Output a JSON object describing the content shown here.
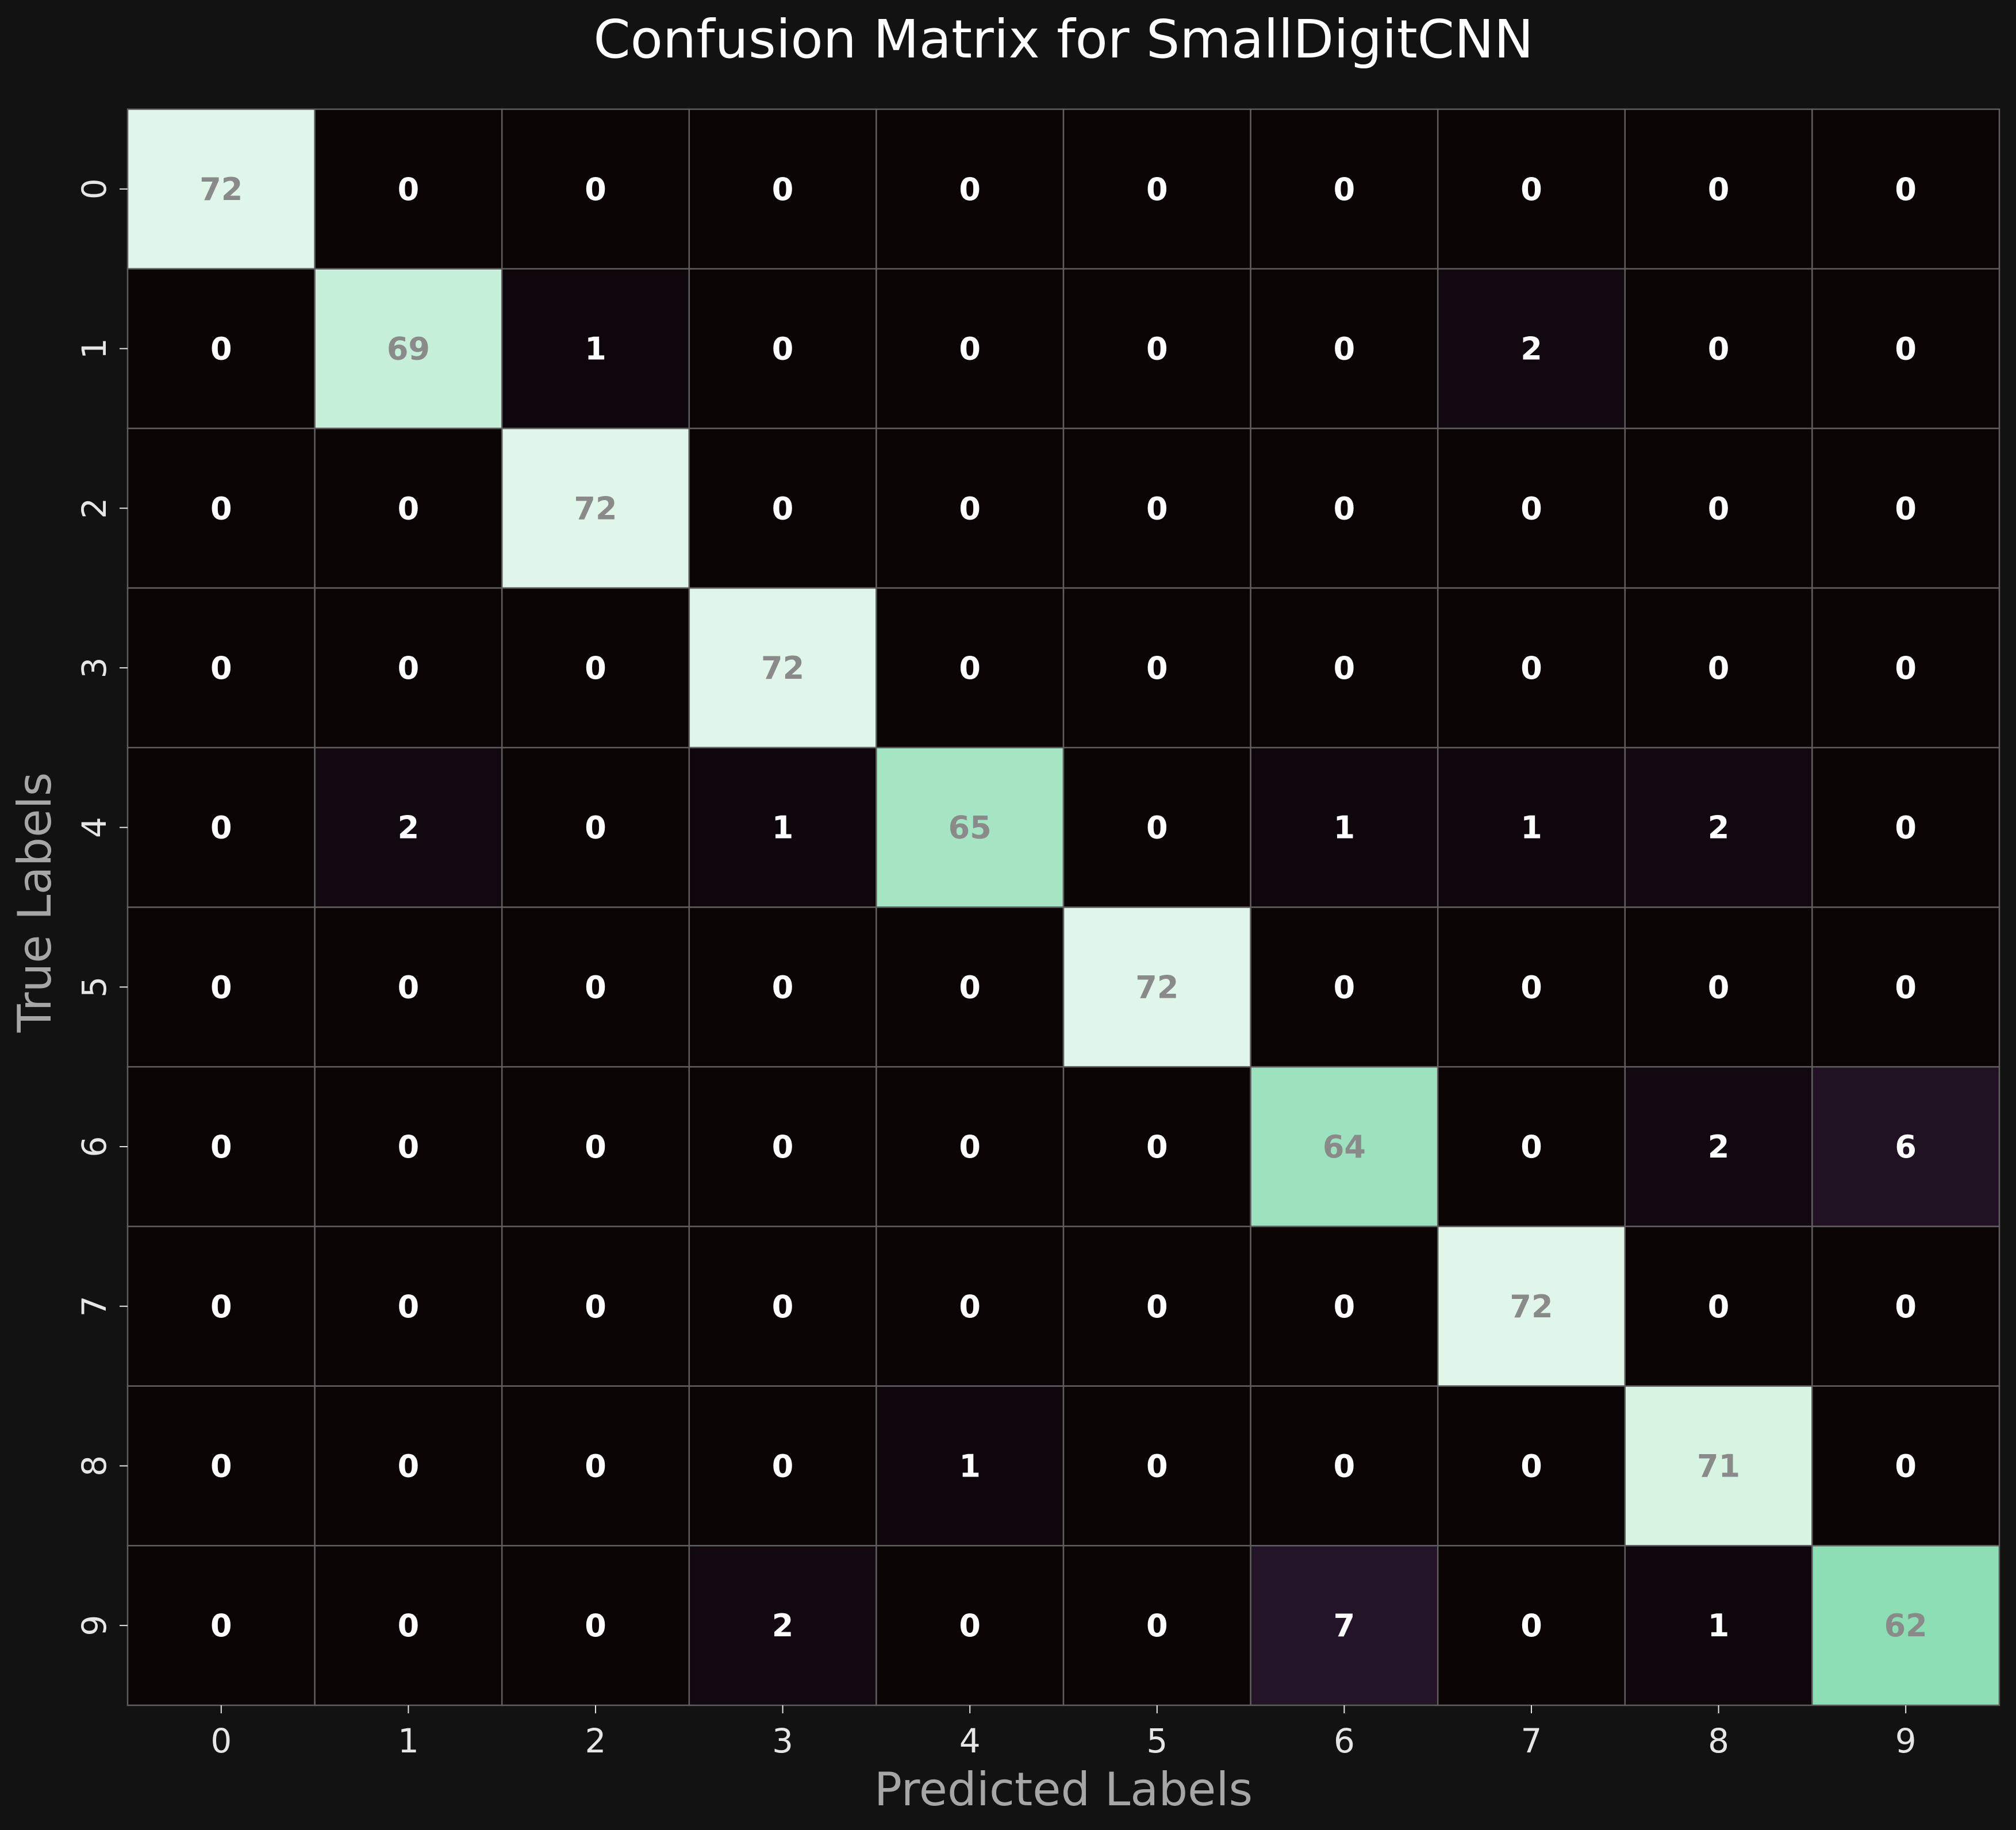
{
  "chart_data": {
    "type": "heatmap",
    "title": "Confusion Matrix for SmallDigitCNN",
    "xlabel": "Predicted Labels",
    "ylabel": "True Labels",
    "x_categories": [
      "0",
      "1",
      "2",
      "3",
      "4",
      "5",
      "6",
      "7",
      "8",
      "9"
    ],
    "y_categories": [
      "0",
      "1",
      "2",
      "3",
      "4",
      "5",
      "6",
      "7",
      "8",
      "9"
    ],
    "matrix": [
      [
        72,
        0,
        0,
        0,
        0,
        0,
        0,
        0,
        0,
        0
      ],
      [
        0,
        69,
        1,
        0,
        0,
        0,
        0,
        2,
        0,
        0
      ],
      [
        0,
        0,
        72,
        0,
        0,
        0,
        0,
        0,
        0,
        0
      ],
      [
        0,
        0,
        0,
        72,
        0,
        0,
        0,
        0,
        0,
        0
      ],
      [
        0,
        2,
        0,
        1,
        65,
        0,
        1,
        1,
        2,
        0
      ],
      [
        0,
        0,
        0,
        0,
        0,
        72,
        0,
        0,
        0,
        0
      ],
      [
        0,
        0,
        0,
        0,
        0,
        0,
        64,
        0,
        2,
        6
      ],
      [
        0,
        0,
        0,
        0,
        0,
        0,
        0,
        72,
        0,
        0
      ],
      [
        0,
        0,
        0,
        0,
        1,
        0,
        0,
        0,
        71,
        0
      ],
      [
        0,
        0,
        0,
        2,
        0,
        0,
        7,
        0,
        1,
        62
      ]
    ],
    "value_range": [
      0,
      72
    ],
    "colorbar": false,
    "colors": {
      "background": "#121212",
      "low": "#0a0405",
      "mid": "#2a1830",
      "high": "#dff6e8",
      "high_alt": "#86dbb1",
      "grid_line": "#5e5e5e",
      "dark_text": "#8a8a8a",
      "light_text": "#ffffff"
    }
  }
}
